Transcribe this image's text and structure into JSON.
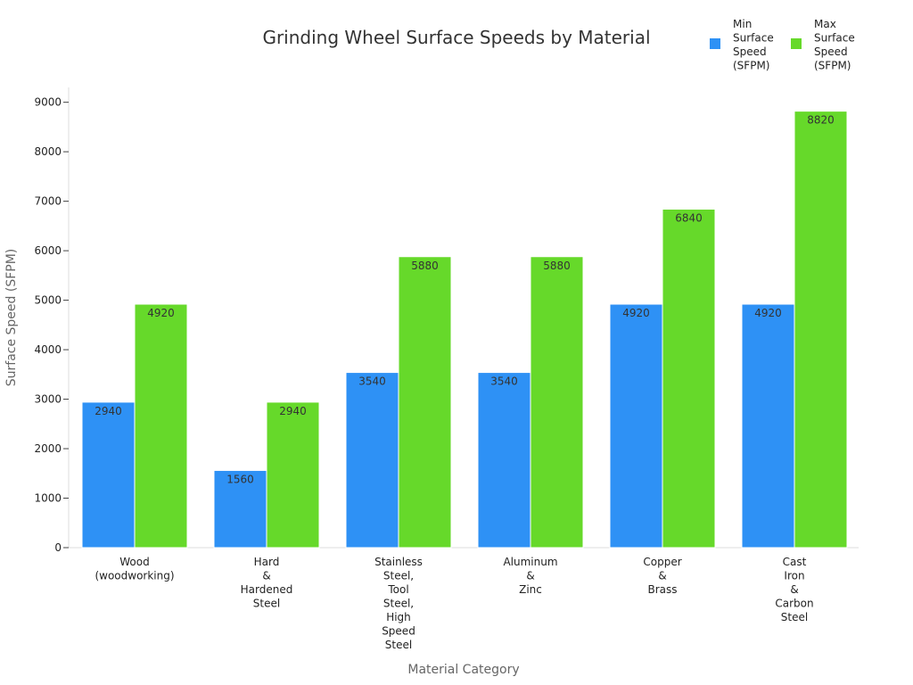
{
  "chart_data": {
    "type": "bar",
    "title": "Grinding Wheel Surface Speeds by Material",
    "xlabel": "Material Category",
    "ylabel": "Surface Speed (SFPM)",
    "ylim": [
      0,
      9300
    ],
    "yticks": [
      0,
      1000,
      2000,
      3000,
      4000,
      5000,
      6000,
      7000,
      8000,
      9000
    ],
    "grid": false,
    "legend_position": "top-right",
    "categories": [
      [
        "Wood",
        "(woodworking)"
      ],
      [
        "Hard",
        "&",
        "Hardened",
        "Steel"
      ],
      [
        "Stainless",
        "Steel,",
        "Tool",
        "Steel,",
        "High",
        "Speed",
        "Steel"
      ],
      [
        "Aluminum",
        "&",
        "Zinc"
      ],
      [
        "Copper",
        "&",
        "Brass"
      ],
      [
        "Cast",
        "Iron",
        "&",
        "Carbon",
        "Steel"
      ]
    ],
    "series": [
      {
        "name": [
          "Min",
          "Surface",
          "Speed",
          "(SFPM)"
        ],
        "color": "#2e91f5",
        "values": [
          2940,
          1560,
          3540,
          3540,
          4920,
          4920
        ]
      },
      {
        "name": [
          "Max",
          "Surface",
          "Speed",
          "(SFPM)"
        ],
        "color": "#66d92a",
        "values": [
          4920,
          2940,
          5880,
          5880,
          6840,
          8820
        ]
      }
    ]
  }
}
